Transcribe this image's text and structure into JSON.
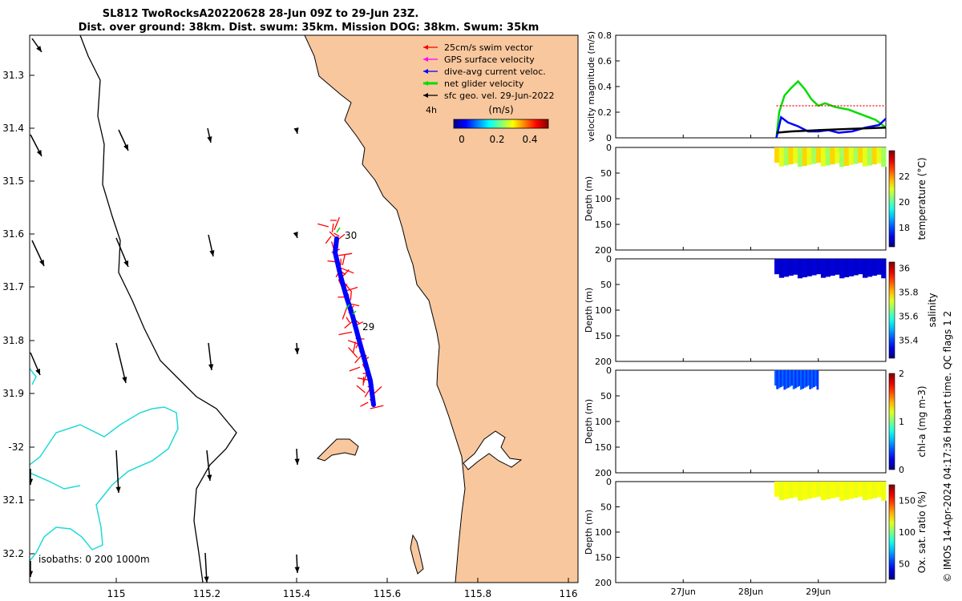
{
  "header": {
    "line1": "SL812 TwoRocksA20220628 28-Jun 09Z to 29-Jun 23Z.",
    "line2": "Dist. over ground: 38km. Dist. swum: 35km. Mission DOG: 38km. Swum: 35km"
  },
  "colors": {
    "land": "#f9c79d",
    "coast": "#000000",
    "isobath": "#20d9d9",
    "swim": "#ff0000",
    "gps": "#ff00ff",
    "current": "#0000ff",
    "net": "#00dd00",
    "geo": "#000000"
  },
  "map": {
    "lon_ticks": [
      "115",
      "115.2",
      "115.4",
      "115.6",
      "115.8",
      "116"
    ],
    "lat_ticks": [
      "31.3",
      "31.4",
      "31.5",
      "31.6",
      "31.7",
      "31.8",
      "31.9",
      "-32",
      "32.1",
      "32.2"
    ],
    "legend": [
      {
        "label": "25cm/s swim vector",
        "color": "#ff0000"
      },
      {
        "label": "GPS surface velocity",
        "color": "#ff00ff"
      },
      {
        "label": "dive-avg current veloc.",
        "color": "#0000ff"
      },
      {
        "label": "net glider velocity",
        "color": "#00dd00"
      },
      {
        "label": "sfc geo. vel. 29-Jun-2022",
        "color": "#000000"
      }
    ],
    "interval_label": "4h",
    "colorbar_title": "(m/s)",
    "colorbar_ticks": [
      "0",
      "0.2",
      "0.4"
    ],
    "day_labels": [
      "30",
      "29"
    ],
    "isobath_label": "isobaths: 0   200  1000m"
  },
  "chart_data": [
    {
      "type": "line",
      "ylabel": "velocity magnitude (m/s)",
      "ylim": [
        0,
        0.8
      ],
      "yticks": [
        "0",
        "0.2",
        "0.4",
        "0.6",
        "0.8"
      ],
      "x_range_days": [
        "26Jun",
        "30Jun"
      ],
      "series": [
        {
          "color": "#00dd00",
          "points": [
            [
              28.38,
              0.0
            ],
            [
              28.42,
              0.2
            ],
            [
              28.5,
              0.33
            ],
            [
              28.6,
              0.39
            ],
            [
              28.7,
              0.44
            ],
            [
              28.8,
              0.38
            ],
            [
              28.9,
              0.3
            ],
            [
              29.0,
              0.25
            ],
            [
              29.1,
              0.27
            ],
            [
              29.25,
              0.24
            ],
            [
              29.45,
              0.22
            ],
            [
              29.65,
              0.18
            ],
            [
              29.85,
              0.14
            ],
            [
              30.0,
              0.08
            ]
          ]
        },
        {
          "color": "#0000ff",
          "points": [
            [
              28.38,
              0.0
            ],
            [
              28.45,
              0.16
            ],
            [
              28.55,
              0.12
            ],
            [
              28.7,
              0.09
            ],
            [
              28.85,
              0.05
            ],
            [
              29.0,
              0.05
            ],
            [
              29.15,
              0.06
            ],
            [
              29.3,
              0.04
            ],
            [
              29.5,
              0.05
            ],
            [
              29.7,
              0.08
            ],
            [
              29.9,
              0.1
            ],
            [
              30.0,
              0.15
            ]
          ]
        },
        {
          "color": "#000000",
          "points": [
            [
              28.38,
              0.04
            ],
            [
              28.6,
              0.05
            ],
            [
              29.0,
              0.06
            ],
            [
              29.5,
              0.07
            ],
            [
              30.0,
              0.08
            ]
          ]
        },
        {
          "color": "#ff0000",
          "style": "dotted",
          "points": [
            [
              28.38,
              0.25
            ],
            [
              30.0,
              0.25
            ]
          ]
        }
      ]
    },
    {
      "type": "heatmap",
      "variable": "temperature",
      "ylabel": "Depth (m)",
      "colorbar_label": "temperature (°C)",
      "colorbar_ticks": [
        "18",
        "20",
        "22"
      ],
      "clim": [
        16.5,
        24
      ],
      "yticks": [
        "0",
        "50",
        "100",
        "150",
        "200"
      ],
      "x_extent": [
        28.35,
        30.0
      ],
      "depth_extent": [
        0,
        38
      ],
      "values": [
        21.5,
        21.0,
        20.5
      ]
    },
    {
      "type": "heatmap",
      "variable": "salinity",
      "ylabel": "Depth (m)",
      "colorbar_label": "salinity",
      "colorbar_ticks": [
        "35.4",
        "35.6",
        "35.8",
        "36"
      ],
      "clim": [
        35.25,
        36.05
      ],
      "yticks": [
        "0",
        "50",
        "100",
        "150",
        "200"
      ],
      "x_extent": [
        28.35,
        30.0
      ],
      "depth_extent": [
        0,
        38
      ],
      "values": [
        35.32,
        35.31
      ]
    },
    {
      "type": "heatmap",
      "variable": "chl-a",
      "ylabel": "Depth (m)",
      "colorbar_label": "chl-a (mg m-3)",
      "colorbar_ticks": [
        "0",
        "1",
        "2"
      ],
      "clim": [
        0,
        2
      ],
      "yticks": [
        "0",
        "50",
        "100",
        "150",
        "200"
      ],
      "x_extent": [
        28.35,
        29.0
      ],
      "depth_extent": [
        0,
        38
      ],
      "values": [
        0.45,
        0.35
      ]
    },
    {
      "type": "heatmap",
      "variable": "oxygen saturation",
      "ylabel": "Depth (m)",
      "colorbar_label": "Ox. sat. ratio (%)",
      "colorbar_ticks": [
        "50",
        "100",
        "150"
      ],
      "clim": [
        25,
        175
      ],
      "yticks": [
        "0",
        "50",
        "100",
        "150",
        "200"
      ],
      "x_extent": [
        28.35,
        30.0
      ],
      "depth_extent": [
        0,
        38
      ],
      "values": [
        118,
        116
      ]
    }
  ],
  "time_axis": {
    "ticks": [
      {
        "day": 27,
        "label": "27Jun"
      },
      {
        "day": 28,
        "label": "28Jun"
      },
      {
        "day": 29,
        "label": "29Jun"
      }
    ]
  },
  "footer": {
    "credit": "© IMOS 14-Apr-2024 04:17:36 Hobart time. QC flags 1  2"
  }
}
